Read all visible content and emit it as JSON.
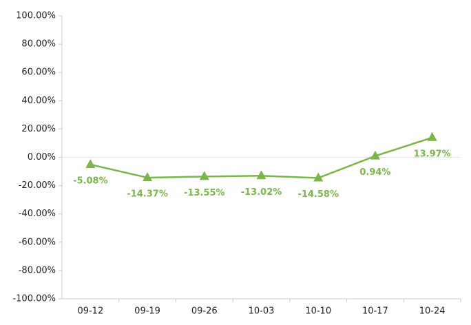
{
  "chart_data": {
    "type": "line",
    "categories": [
      "09-12",
      "09-19",
      "09-26",
      "10-03",
      "10-10",
      "10-17",
      "10-24"
    ],
    "series": [
      {
        "color": "#7ab648",
        "values": [
          -5.08,
          -14.37,
          -13.55,
          -13.02,
          -14.58,
          0.94,
          13.97
        ],
        "value_labels": [
          "-5.08%",
          "-14.37%",
          "-13.55%",
          "-13.02%",
          "-14.58%",
          "0.94%",
          "13.97%"
        ]
      }
    ],
    "ylim": [
      -100,
      100
    ],
    "yticks": [
      {
        "value": -100,
        "label": "-100.00%"
      },
      {
        "value": -80,
        "label": "-80.00%"
      },
      {
        "value": -60,
        "label": "-60.00%"
      },
      {
        "value": -40,
        "label": "-40.00%"
      },
      {
        "value": -20,
        "label": "-20.00%"
      },
      {
        "value": 0,
        "label": "0.00%"
      },
      {
        "value": 20,
        "label": "20.00%"
      },
      {
        "value": 40,
        "label": "40.00%"
      },
      {
        "value": 60,
        "label": "60.00%"
      },
      {
        "value": 80,
        "label": "80.00%"
      },
      {
        "value": 100,
        "label": "100.00%"
      }
    ]
  }
}
